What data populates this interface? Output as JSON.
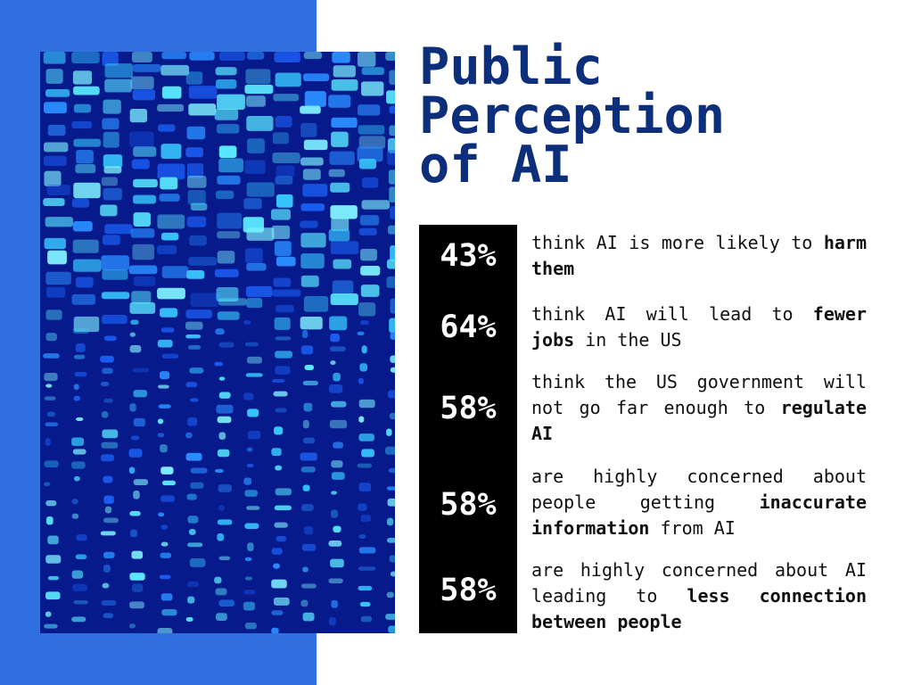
{
  "header": {
    "title": [
      "Public",
      "Perception",
      "of AI"
    ]
  },
  "stats": [
    {
      "value": "43%",
      "parts": [
        {
          "text": "think AI is more likely to ",
          "bold": false
        },
        {
          "text": "harm them",
          "bold": true
        }
      ]
    },
    {
      "value": "64%",
      "parts": [
        {
          "text": "think AI will lead to ",
          "bold": false
        },
        {
          "text": "fewer jobs",
          "bold": true
        },
        {
          "text": " in the US",
          "bold": false
        }
      ]
    },
    {
      "value": "58%",
      "parts": [
        {
          "text": "think the US government will not go far enough to ",
          "bold": false
        },
        {
          "text": "regulate AI",
          "bold": true
        }
      ]
    },
    {
      "value": "58%",
      "parts": [
        {
          "text": "are highly concerned about people getting ",
          "bold": false
        },
        {
          "text": "inaccurate information",
          "bold": true
        },
        {
          "text": " from AI",
          "bold": false
        }
      ]
    },
    {
      "value": "58%",
      "parts": [
        {
          "text": "are highly concerned about AI leading to ",
          "bold": false
        },
        {
          "text": "less connection between people",
          "bold": true
        }
      ]
    }
  ]
}
